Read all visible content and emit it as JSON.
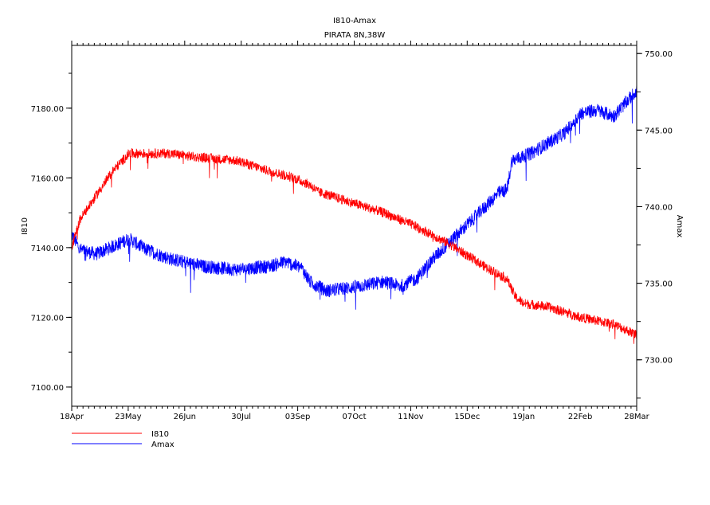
{
  "chart_data": {
    "type": "line",
    "title": "I810-Amax",
    "subtitle": "PIRATA 8N,38W",
    "xlabel": "",
    "x_ticks": [
      "18Apr",
      "23May",
      "26Jun",
      "30Jul",
      "03Sep",
      "07Oct",
      "11Nov",
      "15Dec",
      "19Jan",
      "22Feb",
      "28Mar"
    ],
    "x_range_days": [
      0,
      344
    ],
    "y_left": {
      "label": "I810",
      "ticks": [
        "7100.00",
        "7120.00",
        "7140.00",
        "7160.00",
        "7180.00"
      ],
      "tick_values": [
        7100,
        7120,
        7140,
        7160,
        7180
      ],
      "range": [
        7094.5,
        7198
      ]
    },
    "y_right": {
      "label": "Amax",
      "ticks": [
        "730.00",
        "735.00",
        "740.00",
        "745.00",
        "750.00"
      ],
      "tick_values": [
        730,
        735,
        740,
        745,
        750
      ],
      "range": [
        726.97,
        750.53
      ]
    },
    "legend": {
      "placement": "bottom-left",
      "entries": [
        "I810",
        "Amax"
      ]
    },
    "series": [
      {
        "name": "I810",
        "axis": "left",
        "color": "#ff0000",
        "noise": 1.4,
        "points": [
          [
            0,
            7140
          ],
          [
            5,
            7148
          ],
          [
            15,
            7155
          ],
          [
            25,
            7162
          ],
          [
            35,
            7167
          ],
          [
            60,
            7167
          ],
          [
            75,
            7166
          ],
          [
            100,
            7165
          ],
          [
            120,
            7162
          ],
          [
            135,
            7160
          ],
          [
            145,
            7158
          ],
          [
            150,
            7156
          ],
          [
            170,
            7153
          ],
          [
            190,
            7150
          ],
          [
            210,
            7146
          ],
          [
            230,
            7141
          ],
          [
            250,
            7135
          ],
          [
            265,
            7131
          ],
          [
            270,
            7126
          ],
          [
            275,
            7124
          ],
          [
            290,
            7123
          ],
          [
            310,
            7120
          ],
          [
            330,
            7118
          ],
          [
            344,
            7115
          ]
        ]
      },
      {
        "name": "Amax",
        "axis": "right",
        "color": "#0000ff",
        "noise": 0.45,
        "points": [
          [
            0,
            738.2
          ],
          [
            5,
            737.2
          ],
          [
            15,
            736.9
          ],
          [
            35,
            737.9
          ],
          [
            45,
            737.2
          ],
          [
            60,
            736.6
          ],
          [
            80,
            736.1
          ],
          [
            100,
            735.9
          ],
          [
            120,
            736.1
          ],
          [
            130,
            736.4
          ],
          [
            140,
            736.0
          ],
          [
            145,
            735.1
          ],
          [
            155,
            734.5
          ],
          [
            175,
            734.8
          ],
          [
            190,
            735.1
          ],
          [
            200,
            734.8
          ],
          [
            210,
            735.3
          ],
          [
            220,
            736.6
          ],
          [
            235,
            738.2
          ],
          [
            250,
            739.8
          ],
          [
            260,
            740.9
          ],
          [
            265,
            741.1
          ],
          [
            268,
            743.0
          ],
          [
            280,
            743.5
          ],
          [
            300,
            744.8
          ],
          [
            310,
            746.1
          ],
          [
            320,
            746.3
          ],
          [
            330,
            745.9
          ],
          [
            344,
            747.6
          ]
        ]
      }
    ]
  }
}
